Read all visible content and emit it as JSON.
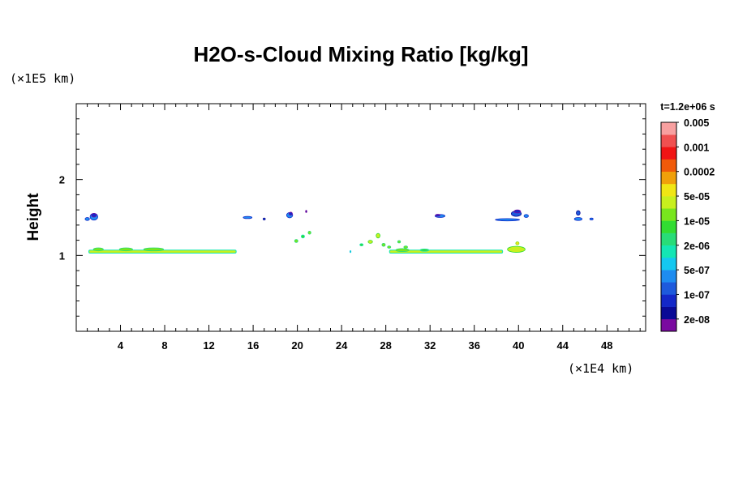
{
  "chart_data": {
    "type": "heatmap",
    "title": "H2O-s-Cloud Mixing Ratio [kg/kg]",
    "ylabel": "Height",
    "x_unit_label": "(×1E4 km)",
    "y_unit_label": "(×1E5 km)",
    "time_label": "t=1.2e+06 s",
    "xlim": [
      0,
      51.5
    ],
    "ylim": [
      0,
      3
    ],
    "x_ticks": [
      4,
      8,
      12,
      16,
      20,
      24,
      28,
      32,
      36,
      40,
      44,
      48
    ],
    "x_tick_labels": [
      "4",
      "8",
      "12",
      "16",
      "20",
      "24",
      "28",
      "32",
      "36",
      "40",
      "44",
      "48"
    ],
    "y_ticks": [
      1,
      2
    ],
    "y_tick_labels": [
      "1",
      "2"
    ],
    "colorbar": {
      "colors": [
        "#7a0aa0",
        "#0a0a96",
        "#1428c8",
        "#1e5adc",
        "#1e8cf0",
        "#14c8f0",
        "#14e6b4",
        "#28dc78",
        "#32dc32",
        "#78e61e",
        "#c8f01e",
        "#f0e614",
        "#f0a00a",
        "#f05a0a",
        "#f01414",
        "#f05050",
        "#f8a0a0"
      ],
      "labels": [
        "2e-08",
        "1e-07",
        "5e-07",
        "2e-06",
        "1e-05",
        "5e-05",
        "0.0002",
        "0.001",
        "0.005"
      ]
    },
    "features": [
      {
        "kind": "band",
        "x0": 1.1,
        "x1": 14.5,
        "y": 1.05,
        "thick": 0.03,
        "color_index": 10,
        "edge_index": 6
      },
      {
        "kind": "blob",
        "x": 2.0,
        "y": 1.08,
        "w": 0.9,
        "h": 0.04,
        "color_index": 9
      },
      {
        "kind": "blob",
        "x": 4.5,
        "y": 1.08,
        "w": 1.2,
        "h": 0.04,
        "color_index": 9
      },
      {
        "kind": "blob",
        "x": 7.0,
        "y": 1.08,
        "w": 1.8,
        "h": 0.04,
        "color_index": 9
      },
      {
        "kind": "blob",
        "x": 1.0,
        "y": 1.48,
        "w": 0.4,
        "h": 0.04,
        "color_index": 4
      },
      {
        "kind": "blob",
        "x": 1.6,
        "y": 1.51,
        "w": 0.7,
        "h": 0.09,
        "color_index": 4
      },
      {
        "kind": "blob",
        "x": 1.6,
        "y": 1.53,
        "w": 0.45,
        "h": 0.05,
        "color_index": 2
      },
      {
        "kind": "blob",
        "x": 15.5,
        "y": 1.5,
        "w": 0.8,
        "h": 0.03,
        "color_index": 4
      },
      {
        "kind": "blob",
        "x": 17.0,
        "y": 1.48,
        "w": 0.2,
        "h": 0.02,
        "color_index": 3
      },
      {
        "kind": "blob",
        "x": 19.3,
        "y": 1.53,
        "w": 0.55,
        "h": 0.07,
        "color_index": 4
      },
      {
        "kind": "blob",
        "x": 19.4,
        "y": 1.55,
        "w": 0.3,
        "h": 0.04,
        "color_index": 2
      },
      {
        "kind": "blob",
        "x": 20.8,
        "y": 1.58,
        "w": 0.12,
        "h": 0.03,
        "color_index": 1
      },
      {
        "kind": "blob",
        "x": 19.9,
        "y": 1.19,
        "w": 0.3,
        "h": 0.04,
        "color_index": 9
      },
      {
        "kind": "blob",
        "x": 20.5,
        "y": 1.25,
        "w": 0.3,
        "h": 0.04,
        "color_index": 8
      },
      {
        "kind": "blob",
        "x": 21.1,
        "y": 1.3,
        "w": 0.25,
        "h": 0.04,
        "color_index": 9
      },
      {
        "kind": "blob",
        "x": 24.8,
        "y": 1.05,
        "w": 0.1,
        "h": 0.02,
        "color_index": 7
      },
      {
        "kind": "blob",
        "x": 25.8,
        "y": 1.14,
        "w": 0.3,
        "h": 0.03,
        "color_index": 8
      },
      {
        "kind": "blob",
        "x": 26.6,
        "y": 1.18,
        "w": 0.4,
        "h": 0.04,
        "color_index": 10
      },
      {
        "kind": "blob",
        "x": 27.3,
        "y": 1.26,
        "w": 0.35,
        "h": 0.06,
        "color_index": 10
      },
      {
        "kind": "blob",
        "x": 27.8,
        "y": 1.14,
        "w": 0.3,
        "h": 0.04,
        "color_index": 9
      },
      {
        "kind": "blob",
        "x": 28.3,
        "y": 1.11,
        "w": 0.3,
        "h": 0.03,
        "color_index": 9
      },
      {
        "kind": "blob",
        "x": 29.2,
        "y": 1.18,
        "w": 0.25,
        "h": 0.03,
        "color_index": 9
      },
      {
        "kind": "blob",
        "x": 29.8,
        "y": 1.11,
        "w": 0.35,
        "h": 0.03,
        "color_index": 9
      },
      {
        "kind": "band",
        "x0": 28.3,
        "x1": 38.6,
        "y": 1.05,
        "thick": 0.03,
        "color_index": 10,
        "edge_index": 6
      },
      {
        "kind": "blob",
        "x": 29.5,
        "y": 1.07,
        "w": 1.2,
        "h": 0.04,
        "color_index": 9
      },
      {
        "kind": "blob",
        "x": 31.5,
        "y": 1.07,
        "w": 0.8,
        "h": 0.03,
        "color_index": 8
      },
      {
        "kind": "blob",
        "x": 39.8,
        "y": 1.08,
        "w": 1.6,
        "h": 0.08,
        "color_index": 10
      },
      {
        "kind": "blob",
        "x": 39.9,
        "y": 1.16,
        "w": 0.3,
        "h": 0.04,
        "color_index": 11
      },
      {
        "kind": "blob",
        "x": 32.9,
        "y": 1.52,
        "w": 0.9,
        "h": 0.04,
        "color_index": 4
      },
      {
        "kind": "blob",
        "x": 32.7,
        "y": 1.53,
        "w": 0.4,
        "h": 0.025,
        "color_index": 2
      },
      {
        "kind": "blob",
        "x": 39.0,
        "y": 1.47,
        "w": 2.2,
        "h": 0.03,
        "color_index": 4
      },
      {
        "kind": "blob",
        "x": 39.8,
        "y": 1.55,
        "w": 0.9,
        "h": 0.07,
        "color_index": 3
      },
      {
        "kind": "blob",
        "x": 39.9,
        "y": 1.58,
        "w": 0.6,
        "h": 0.04,
        "color_index": 2
      },
      {
        "kind": "blob",
        "x": 40.7,
        "y": 1.52,
        "w": 0.4,
        "h": 0.04,
        "color_index": 4
      },
      {
        "kind": "blob",
        "x": 45.4,
        "y": 1.48,
        "w": 0.7,
        "h": 0.04,
        "color_index": 4
      },
      {
        "kind": "blob",
        "x": 45.4,
        "y": 1.56,
        "w": 0.35,
        "h": 0.06,
        "color_index": 3
      },
      {
        "kind": "blob",
        "x": 46.6,
        "y": 1.48,
        "w": 0.3,
        "h": 0.015,
        "color_index": 4
      }
    ]
  }
}
